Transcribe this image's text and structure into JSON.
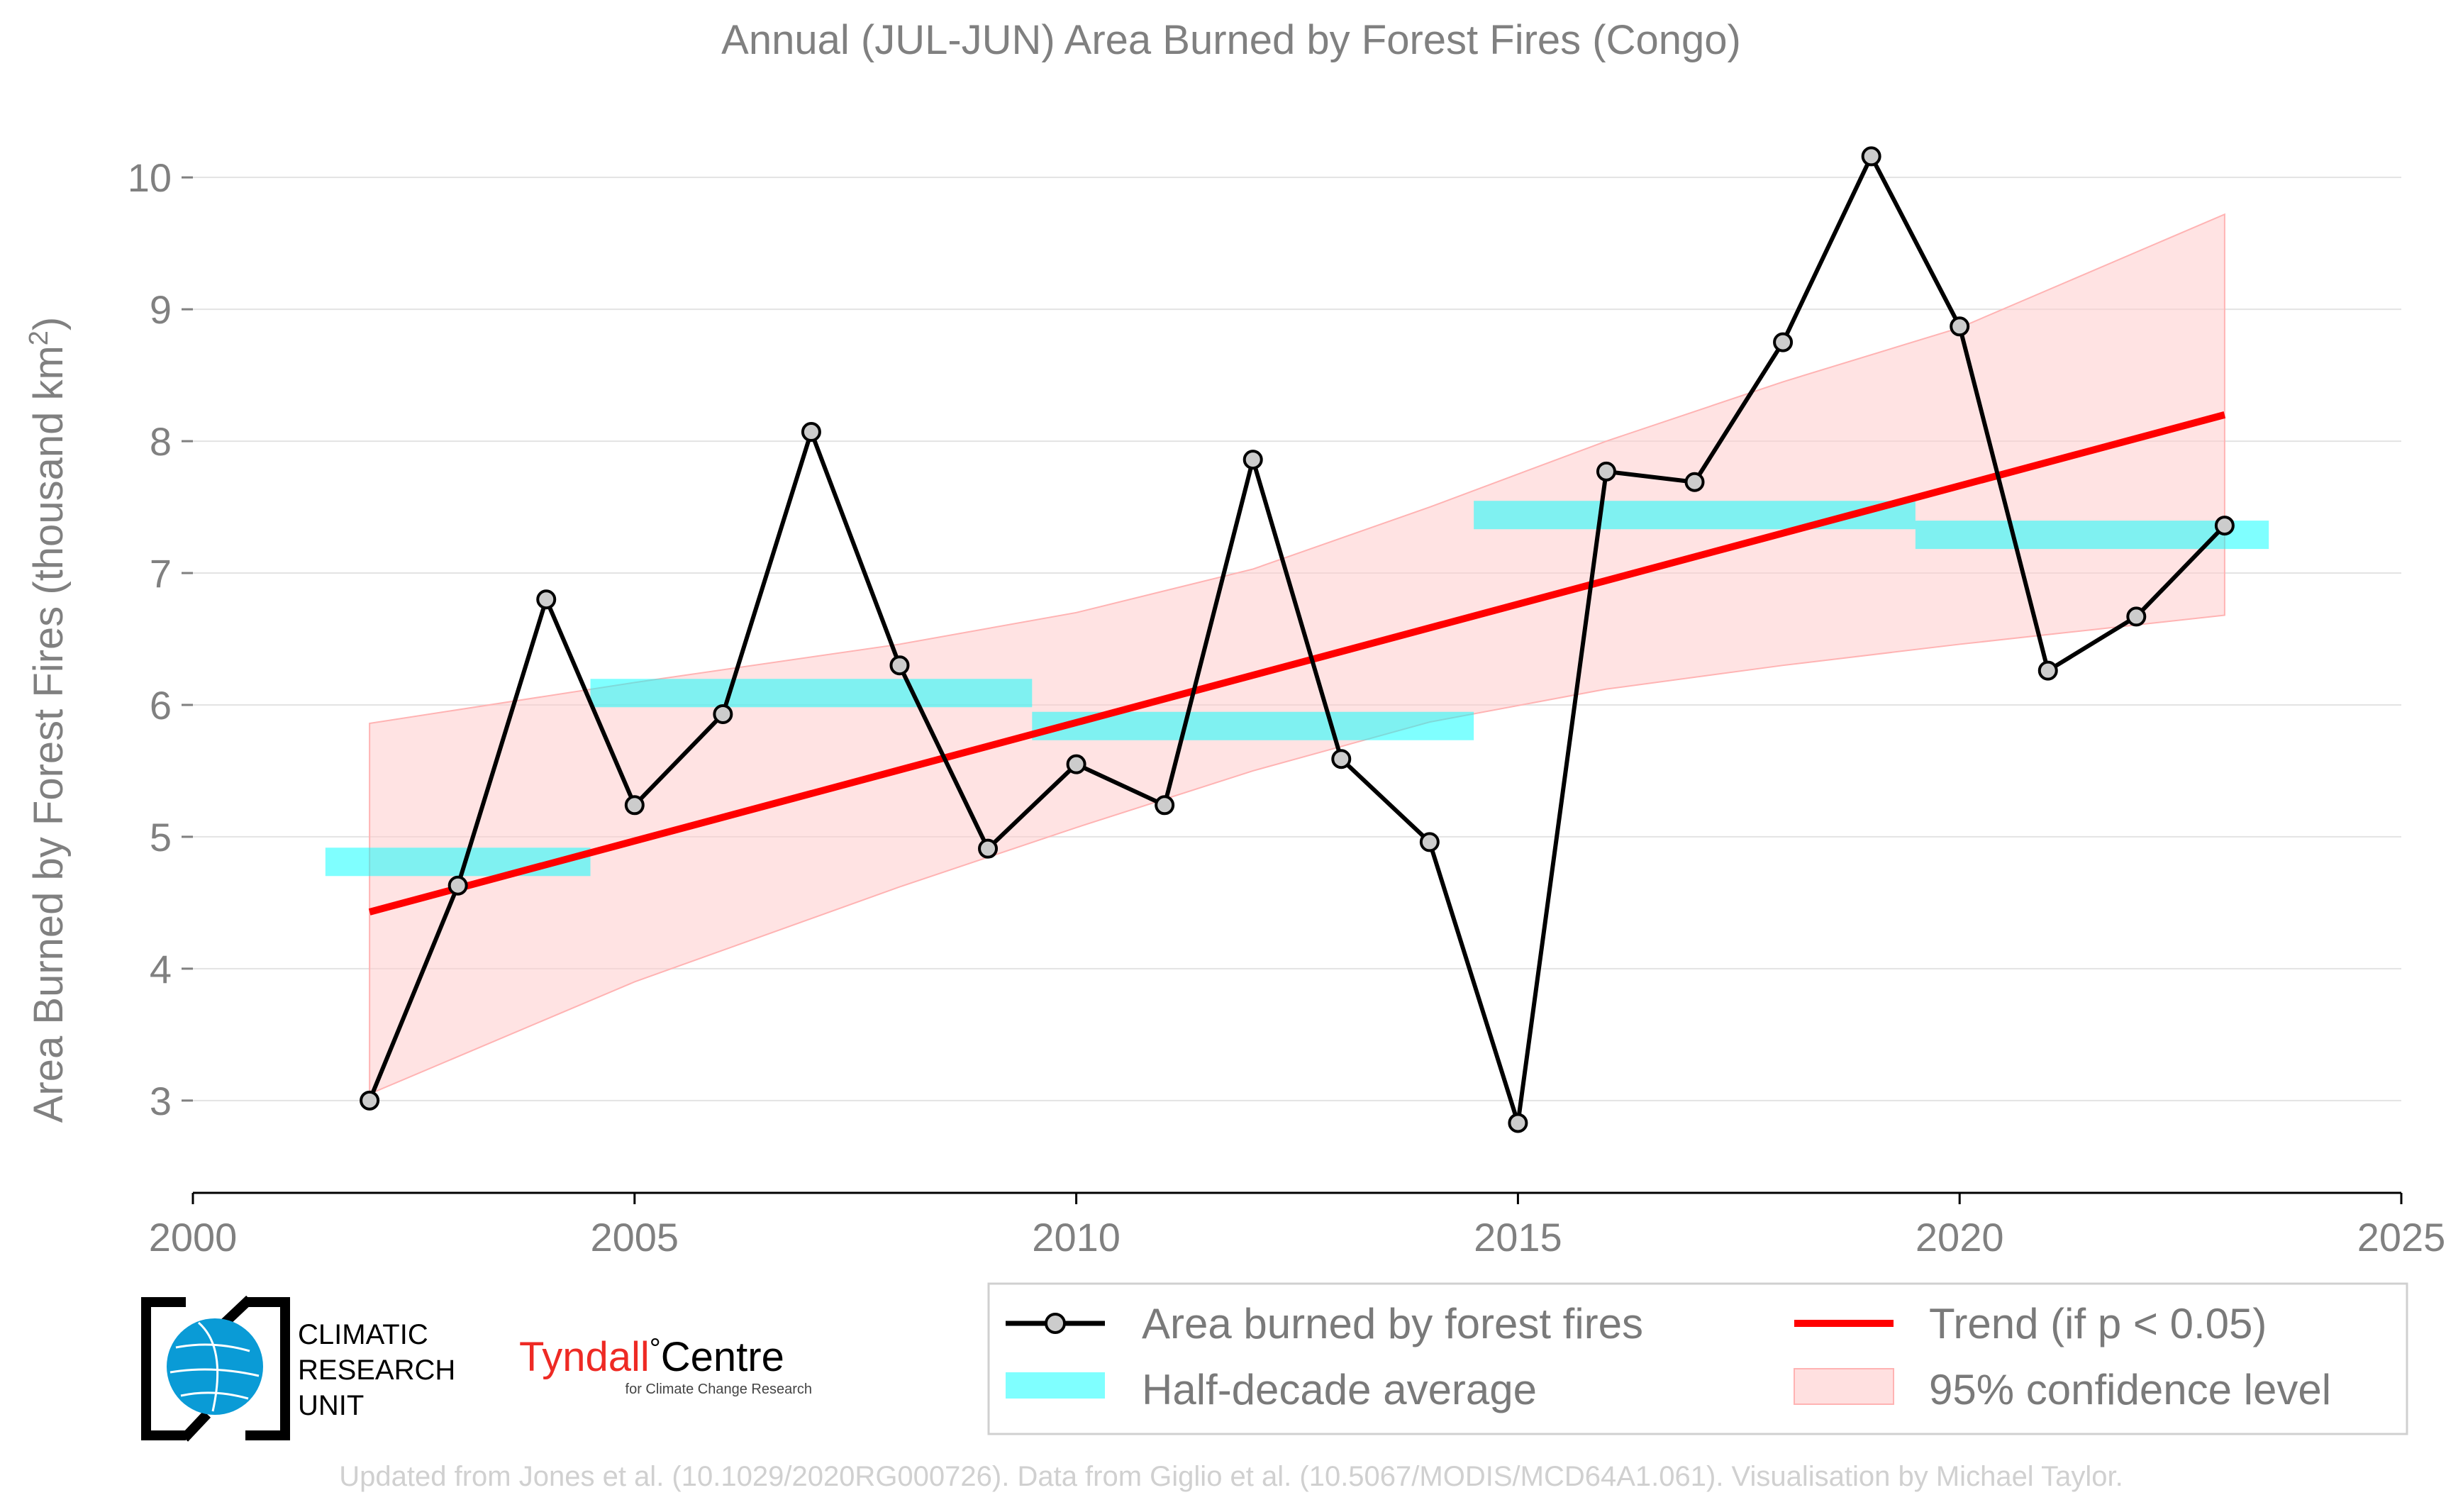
{
  "chart_data": {
    "type": "line",
    "title": "Annual (JUL-JUN) Area Burned by Forest Fires (Congo)",
    "ylabel_main": "Area Burned by Forest Fires (thousand km",
    "ylabel_sup": "2",
    "ylabel_end": ")",
    "xlabel": "",
    "xlim": [
      2000,
      2025
    ],
    "ylim": [
      2.3,
      10.7
    ],
    "x_ticks": [
      2000,
      2005,
      2010,
      2015,
      2020,
      2025
    ],
    "y_ticks": [
      3,
      4,
      5,
      6,
      7,
      8,
      9,
      10
    ],
    "grid": "horizontal",
    "series": [
      {
        "name": "Area burned by forest fires",
        "color": "#000000",
        "marker_fill": "#cccccc",
        "x": [
          2002,
          2003,
          2004,
          2005,
          2006,
          2007,
          2008,
          2009,
          2010,
          2011,
          2012,
          2013,
          2014,
          2015,
          2016,
          2017,
          2018,
          2019,
          2020,
          2021,
          2022,
          2023
        ],
        "y": [
          3.0,
          4.63,
          6.8,
          5.24,
          5.93,
          8.07,
          6.3,
          4.91,
          5.55,
          5.24,
          7.86,
          5.59,
          4.96,
          2.83,
          7.77,
          7.69,
          8.75,
          10.16,
          8.87,
          6.26,
          6.67,
          7.36
        ]
      }
    ],
    "half_decade_average": {
      "name": "Half-decade average",
      "color": "#00ffff",
      "segments": [
        {
          "x0": 2001.5,
          "x1": 2004.5,
          "y": 4.81
        },
        {
          "x0": 2004.5,
          "x1": 2009.5,
          "y": 6.09
        },
        {
          "x0": 2009.5,
          "x1": 2014.5,
          "y": 5.84
        },
        {
          "x0": 2014.5,
          "x1": 2019.5,
          "y": 7.44
        },
        {
          "x0": 2019.5,
          "x1": 2023.5,
          "y": 7.29
        }
      ]
    },
    "trend": {
      "name": "Trend (if p < 0.05)",
      "color": "#ff0000",
      "x": [
        2002,
        2023
      ],
      "y": [
        4.43,
        8.2
      ]
    },
    "confidence_band": {
      "name": "95% confidence level",
      "color": "#ffcccc",
      "x": [
        2002,
        2005,
        2008,
        2010,
        2012,
        2014,
        2016,
        2018,
        2020,
        2023
      ],
      "upper": [
        5.86,
        6.17,
        6.46,
        6.7,
        7.03,
        7.5,
        8.0,
        8.45,
        8.86,
        9.72
      ],
      "lower": [
        3.05,
        3.9,
        4.62,
        5.07,
        5.5,
        5.87,
        6.12,
        6.3,
        6.46,
        6.68
      ]
    },
    "legend_placement": "bottom-right"
  },
  "logos": {
    "cru_lines": [
      "CLIMATIC",
      "RESEARCH",
      "UNIT"
    ],
    "tyndall_main": "Tyndall",
    "tyndall_degree": "°",
    "tyndall_centre": "Centre",
    "tyndall_sub": "for Climate Change Research"
  },
  "footer": "Updated from Jones et al. (10.1029/2020RG000726). Data from Giglio et al. (10.5067/MODIS/MCD64A1.061). Visualisation by Michael Taylor.",
  "colors": {
    "text_gray": "#808080",
    "grid": "#e3e3e3",
    "axis": "#000000"
  }
}
